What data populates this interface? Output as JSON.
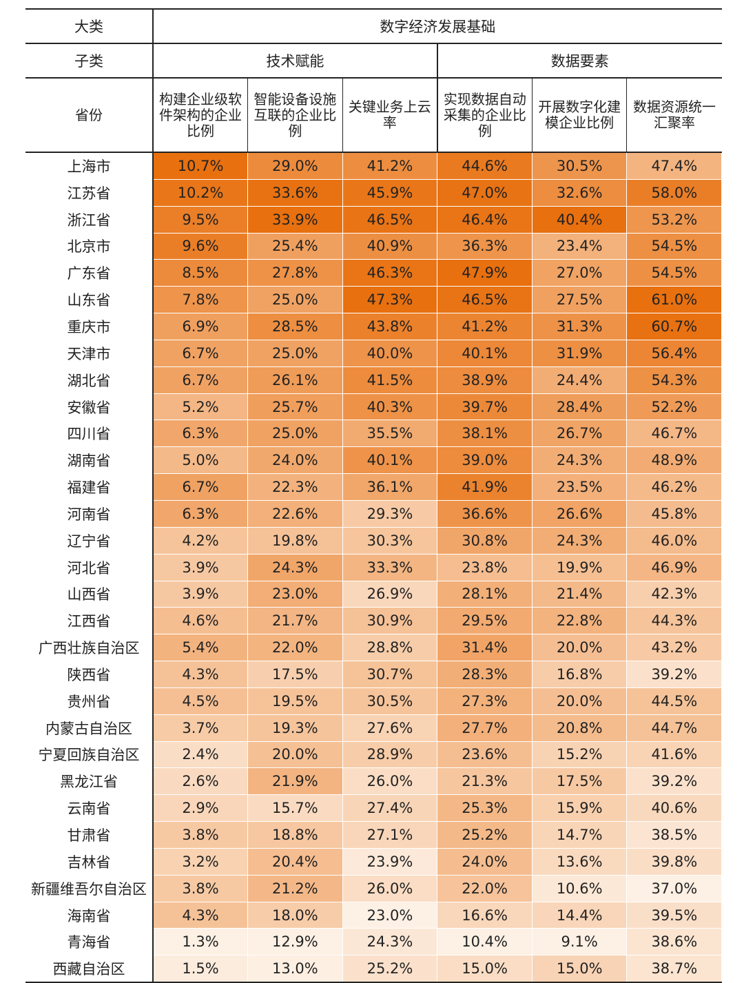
{
  "headers": {
    "category_label": "大类",
    "category_value": "数字经济发展基础",
    "subcategory_label": "子类",
    "subcategories": [
      "技术赋能",
      "数据要素"
    ],
    "province_label": "省份",
    "columns": [
      "构建企业级软件架构的企业比例",
      "智能设备设施互联的企业比例",
      "关键业务上云率",
      "实现数据自动采集的企业比例",
      "开展数字化建模企业比例",
      "数据资源统一汇聚率"
    ]
  },
  "chart_data": {
    "type": "table",
    "columns": [
      "构建企业级软件架构的企业比例",
      "智能设备设施互联的企业比例",
      "关键业务上云率",
      "实现数据自动采集的企业比例",
      "开展数字化建模企业比例",
      "数据资源统一汇聚率"
    ],
    "rows": [
      {
        "province": "上海市",
        "values": [
          "10.7%",
          "29.0%",
          "41.2%",
          "44.6%",
          "30.5%",
          "47.4%"
        ]
      },
      {
        "province": "江苏省",
        "values": [
          "10.2%",
          "33.6%",
          "45.9%",
          "47.0%",
          "32.6%",
          "58.0%"
        ]
      },
      {
        "province": "浙江省",
        "values": [
          "9.5%",
          "33.9%",
          "46.5%",
          "46.4%",
          "40.4%",
          "53.2%"
        ]
      },
      {
        "province": "北京市",
        "values": [
          "9.6%",
          "25.4%",
          "40.9%",
          "36.3%",
          "23.4%",
          "54.5%"
        ]
      },
      {
        "province": "广东省",
        "values": [
          "8.5%",
          "27.8%",
          "46.3%",
          "47.9%",
          "27.0%",
          "54.5%"
        ]
      },
      {
        "province": "山东省",
        "values": [
          "7.8%",
          "25.0%",
          "47.3%",
          "46.5%",
          "27.5%",
          "61.0%"
        ]
      },
      {
        "province": "重庆市",
        "values": [
          "6.9%",
          "28.5%",
          "43.8%",
          "41.2%",
          "31.3%",
          "60.7%"
        ]
      },
      {
        "province": "天津市",
        "values": [
          "6.7%",
          "25.0%",
          "40.0%",
          "40.1%",
          "31.9%",
          "56.4%"
        ]
      },
      {
        "province": "湖北省",
        "values": [
          "6.7%",
          "26.1%",
          "41.5%",
          "38.9%",
          "24.4%",
          "54.3%"
        ]
      },
      {
        "province": "安徽省",
        "values": [
          "5.2%",
          "25.7%",
          "40.3%",
          "39.7%",
          "28.4%",
          "52.2%"
        ]
      },
      {
        "province": "四川省",
        "values": [
          "6.3%",
          "25.0%",
          "35.5%",
          "38.1%",
          "26.7%",
          "46.7%"
        ]
      },
      {
        "province": "湖南省",
        "values": [
          "5.0%",
          "24.0%",
          "40.1%",
          "39.0%",
          "24.3%",
          "48.9%"
        ]
      },
      {
        "province": "福建省",
        "values": [
          "6.7%",
          "22.3%",
          "36.1%",
          "41.9%",
          "23.5%",
          "46.2%"
        ]
      },
      {
        "province": "河南省",
        "values": [
          "6.3%",
          "22.6%",
          "29.3%",
          "36.6%",
          "26.6%",
          "45.8%"
        ]
      },
      {
        "province": "辽宁省",
        "values": [
          "4.2%",
          "19.8%",
          "30.3%",
          "30.8%",
          "24.3%",
          "46.0%"
        ]
      },
      {
        "province": "河北省",
        "values": [
          "3.9%",
          "24.3%",
          "33.3%",
          "23.8%",
          "19.9%",
          "46.9%"
        ]
      },
      {
        "province": "山西省",
        "values": [
          "3.9%",
          "23.0%",
          "26.9%",
          "28.1%",
          "21.4%",
          "42.3%"
        ]
      },
      {
        "province": "江西省",
        "values": [
          "4.6%",
          "21.7%",
          "30.9%",
          "29.5%",
          "22.8%",
          "44.3%"
        ]
      },
      {
        "province": "广西壮族自治区",
        "values": [
          "5.4%",
          "22.0%",
          "28.8%",
          "31.4%",
          "20.0%",
          "43.2%"
        ]
      },
      {
        "province": "陕西省",
        "values": [
          "4.3%",
          "17.5%",
          "30.7%",
          "28.3%",
          "16.8%",
          "39.2%"
        ]
      },
      {
        "province": "贵州省",
        "values": [
          "4.5%",
          "19.5%",
          "30.5%",
          "27.3%",
          "20.0%",
          "44.5%"
        ]
      },
      {
        "province": "内蒙古自治区",
        "values": [
          "3.7%",
          "19.3%",
          "27.6%",
          "27.7%",
          "20.8%",
          "44.7%"
        ]
      },
      {
        "province": "宁夏回族自治区",
        "values": [
          "2.4%",
          "20.0%",
          "28.9%",
          "23.6%",
          "15.2%",
          "41.6%"
        ]
      },
      {
        "province": "黑龙江省",
        "values": [
          "2.6%",
          "21.9%",
          "26.0%",
          "21.3%",
          "17.5%",
          "39.2%"
        ]
      },
      {
        "province": "云南省",
        "values": [
          "2.9%",
          "15.7%",
          "27.4%",
          "25.3%",
          "15.9%",
          "40.6%"
        ]
      },
      {
        "province": "甘肃省",
        "values": [
          "3.8%",
          "18.8%",
          "27.1%",
          "25.2%",
          "14.7%",
          "38.5%"
        ]
      },
      {
        "province": "吉林省",
        "values": [
          "3.2%",
          "20.4%",
          "23.9%",
          "24.0%",
          "13.6%",
          "39.8%"
        ]
      },
      {
        "province": "新疆维吾尔自治区",
        "values": [
          "3.8%",
          "21.2%",
          "26.0%",
          "22.0%",
          "10.6%",
          "37.0%"
        ]
      },
      {
        "province": "海南省",
        "values": [
          "4.3%",
          "18.0%",
          "23.0%",
          "16.6%",
          "14.4%",
          "39.5%"
        ]
      },
      {
        "province": "青海省",
        "values": [
          "1.3%",
          "12.9%",
          "24.3%",
          "10.4%",
          "9.1%",
          "38.6%"
        ]
      },
      {
        "province": "西藏自治区",
        "values": [
          "1.5%",
          "13.0%",
          "25.2%",
          "15.0%",
          "15.0%",
          "38.7%"
        ]
      }
    ],
    "color_scale": {
      "low": "#fdf0e4",
      "high": "#e8700f"
    }
  }
}
